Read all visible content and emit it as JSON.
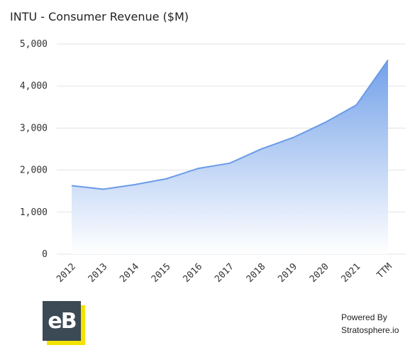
{
  "chart_data": {
    "type": "area",
    "title": "INTU - Consumer Revenue ($M)",
    "categories": [
      "2012",
      "2013",
      "2014",
      "2015",
      "2016",
      "2017",
      "2018",
      "2019",
      "2020",
      "2021",
      "TTM"
    ],
    "values": [
      1630,
      1545,
      1655,
      1795,
      2040,
      2165,
      2505,
      2775,
      3130,
      3550,
      4620
    ],
    "ylim": [
      0,
      5000
    ],
    "yticks": [
      0,
      1000,
      2000,
      3000,
      4000,
      5000
    ],
    "ytick_labels": [
      "0",
      "1,000",
      "2,000",
      "3,000",
      "4,000",
      "5,000"
    ],
    "xlabel": "",
    "ylabel": "",
    "grid": true,
    "legend": "none",
    "colors": {
      "line": "#6a9be8",
      "fill_top": "#6a9be8",
      "fill_bottom": "#ffffff",
      "grid": "#e3e3e3"
    }
  },
  "branding": {
    "logo_text": "eB",
    "logo_colors": {
      "dark": "#3b4a55",
      "accent": "#f2e300"
    },
    "powered_by_line1": "Powered By",
    "powered_by_line2": "Stratosphere.io"
  }
}
